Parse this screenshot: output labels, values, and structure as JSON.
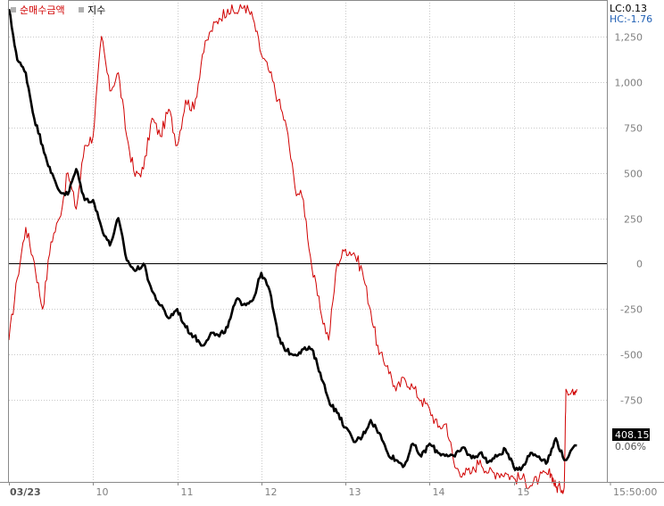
{
  "legend": {
    "items": [
      {
        "label": "순매수금액",
        "color": "#d00000"
      },
      {
        "label": "지수",
        "color": "#000000"
      }
    ]
  },
  "corner": {
    "lc": "LC:0.13",
    "hc": "HC:-1.76"
  },
  "current": {
    "value": "408.15",
    "change": "0.06%"
  },
  "colors": {
    "red": "#d00000",
    "black": "#000000",
    "hc": "#1f5fb4",
    "badge_bg": "#000000"
  },
  "chart_data": {
    "type": "line",
    "x_ticks": [
      "03/23",
      "10",
      "11",
      "12",
      "13",
      "14",
      "15",
      "15:50:00"
    ],
    "y_ticks": [
      1250,
      1000,
      750,
      500,
      250,
      0,
      -250,
      -500,
      -750
    ],
    "y_tick_labels": [
      "1,250",
      "1,000",
      "750",
      "500",
      "250",
      "0",
      "-250",
      "-500",
      "-750"
    ],
    "ylim": [
      -1200,
      1450
    ],
    "zero_line": 0,
    "grid": true,
    "series": [
      {
        "name": "순매수금액",
        "color": "#d00000",
        "x": [
          0.0,
          0.1,
          0.2,
          0.3,
          0.4,
          0.5,
          0.6,
          0.7,
          0.8,
          0.9,
          1.0,
          1.1,
          1.2,
          1.3,
          1.4,
          1.5,
          1.6,
          1.7,
          1.8,
          1.9,
          2.0,
          2.1,
          2.2,
          2.3,
          2.4,
          2.5,
          2.6,
          2.7,
          2.8,
          2.9,
          3.0,
          3.1,
          3.2,
          3.3,
          3.4,
          3.5,
          3.6,
          3.7,
          3.8,
          3.9,
          4.0,
          4.1,
          4.2,
          4.3,
          4.4,
          4.5,
          4.6,
          4.7,
          4.8,
          4.9,
          5.0,
          5.1,
          5.2,
          5.3,
          5.4,
          5.5,
          5.6,
          5.7,
          5.8,
          5.9,
          6.0,
          6.1,
          6.2,
          6.3,
          6.4,
          6.45,
          6.5,
          6.55,
          6.6,
          6.62,
          6.7,
          6.75
        ],
        "values": [
          -420,
          -80,
          200,
          10,
          -250,
          120,
          250,
          500,
          300,
          650,
          700,
          1250,
          950,
          1050,
          700,
          480,
          520,
          800,
          700,
          850,
          650,
          900,
          850,
          1150,
          1280,
          1350,
          1400,
          1380,
          1420,
          1350,
          1150,
          1050,
          900,
          750,
          420,
          350,
          -20,
          -250,
          -420,
          0,
          80,
          60,
          -40,
          -260,
          -500,
          -560,
          -700,
          -630,
          -680,
          -750,
          -800,
          -900,
          -880,
          -1120,
          -1150,
          -1150,
          -1080,
          -1150,
          -1150,
          -1150,
          -1180,
          -1180,
          -1220,
          -1180,
          -1160,
          -1160,
          -1230,
          -1230,
          -1230,
          -690,
          -690,
          -690
        ]
      },
      {
        "name": "지수",
        "color": "#000000",
        "x": [
          0.0,
          0.1,
          0.2,
          0.3,
          0.4,
          0.5,
          0.6,
          0.7,
          0.8,
          0.9,
          1.0,
          1.1,
          1.2,
          1.3,
          1.4,
          1.5,
          1.6,
          1.7,
          1.8,
          1.9,
          2.0,
          2.1,
          2.2,
          2.3,
          2.4,
          2.5,
          2.6,
          2.7,
          2.8,
          2.9,
          3.0,
          3.1,
          3.2,
          3.3,
          3.4,
          3.5,
          3.6,
          3.7,
          3.8,
          3.9,
          4.0,
          4.1,
          4.2,
          4.3,
          4.4,
          4.5,
          4.6,
          4.7,
          4.8,
          4.9,
          5.0,
          5.1,
          5.2,
          5.3,
          5.4,
          5.5,
          5.6,
          5.7,
          5.8,
          5.9,
          6.0,
          6.1,
          6.2,
          6.3,
          6.4,
          6.5,
          6.6,
          6.75
        ],
        "values": [
          1400,
          1120,
          1050,
          800,
          650,
          500,
          400,
          380,
          520,
          350,
          350,
          200,
          100,
          250,
          20,
          -40,
          0,
          -150,
          -230,
          -300,
          -250,
          -350,
          -400,
          -450,
          -380,
          -400,
          -350,
          -200,
          -220,
          -200,
          -50,
          -150,
          -400,
          -480,
          -500,
          -470,
          -470,
          -600,
          -750,
          -820,
          -900,
          -980,
          -950,
          -860,
          -930,
          -1040,
          -1080,
          -1110,
          -990,
          -1060,
          -990,
          -1040,
          -1050,
          -1060,
          -1010,
          -1070,
          -1040,
          -1090,
          -1060,
          -1020,
          -1120,
          -1120,
          -1040,
          -1060,
          -1090,
          -960,
          -1080,
          -1000
        ]
      }
    ]
  }
}
